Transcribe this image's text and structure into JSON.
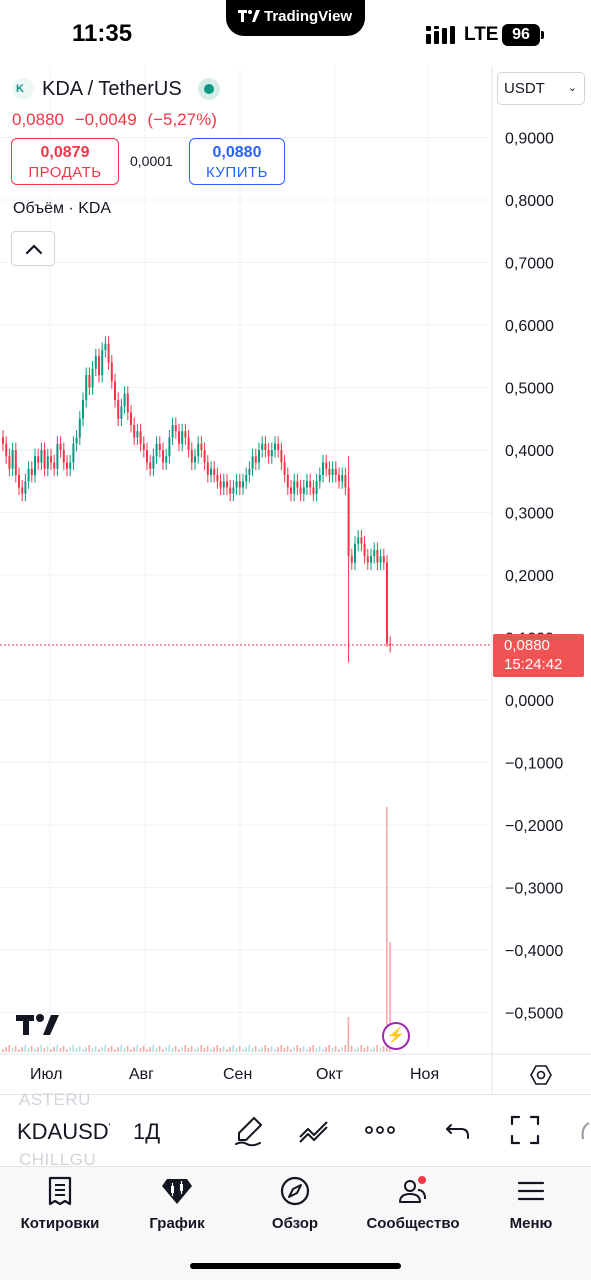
{
  "status_bar": {
    "time": "11:35",
    "island_app": "TradingView",
    "network": "LTE",
    "battery": "96"
  },
  "header": {
    "symbol": "KDA / TetherUS",
    "last_price": "0,0880",
    "change": "−0,0049",
    "change_pct": "(−5,27%)",
    "sell_price": "0,0879",
    "sell_label": "ПРОДАТЬ",
    "spread": "0,0001",
    "buy_price": "0,0880",
    "buy_label": "КУПИТЬ",
    "volume_label": "Объём · KDA",
    "currency": "USDT"
  },
  "chart": {
    "y_ticks": [
      "0,9000",
      "0,8000",
      "0,7000",
      "0,6000",
      "0,5000",
      "0,4000",
      "0,3000",
      "0,2000",
      "0,0000",
      "−0,1000",
      "−0,2000",
      "−0,3000",
      "−0,4000",
      "−0,5000"
    ],
    "x_ticks": [
      "Июл",
      "Авг",
      "Сен",
      "Окт",
      "Ноя"
    ],
    "current_price": "0,0880",
    "countdown": "15:24:42",
    "up_color": "#089981",
    "down_color": "#f23645"
  },
  "chart_data": {
    "type": "candlestick",
    "title": "KDA / TetherUS",
    "xlabel": "",
    "ylabel": "",
    "ylim": [
      -0.55,
      0.97
    ],
    "grid": true,
    "x_ticks": [
      "Июл",
      "Авг",
      "Сен",
      "Окт",
      "Ноя"
    ],
    "close": [
      0.41,
      0.39,
      0.37,
      0.4,
      0.36,
      0.34,
      0.33,
      0.35,
      0.37,
      0.36,
      0.39,
      0.38,
      0.4,
      0.37,
      0.39,
      0.38,
      0.37,
      0.41,
      0.4,
      0.38,
      0.37,
      0.38,
      0.41,
      0.42,
      0.45,
      0.48,
      0.52,
      0.5,
      0.53,
      0.55,
      0.52,
      0.56,
      0.57,
      0.54,
      0.51,
      0.48,
      0.45,
      0.47,
      0.49,
      0.46,
      0.44,
      0.42,
      0.43,
      0.41,
      0.4,
      0.38,
      0.37,
      0.39,
      0.41,
      0.4,
      0.38,
      0.39,
      0.42,
      0.44,
      0.43,
      0.41,
      0.43,
      0.42,
      0.4,
      0.38,
      0.39,
      0.41,
      0.4,
      0.38,
      0.36,
      0.37,
      0.36,
      0.35,
      0.34,
      0.35,
      0.34,
      0.33,
      0.34,
      0.35,
      0.34,
      0.35,
      0.36,
      0.37,
      0.39,
      0.38,
      0.4,
      0.41,
      0.4,
      0.39,
      0.4,
      0.41,
      0.4,
      0.38,
      0.36,
      0.34,
      0.33,
      0.35,
      0.34,
      0.33,
      0.34,
      0.35,
      0.34,
      0.33,
      0.35,
      0.36,
      0.38,
      0.37,
      0.36,
      0.37,
      0.36,
      0.35,
      0.36,
      0.34,
      0.23,
      0.22,
      0.25,
      0.26,
      0.25,
      0.23,
      0.22,
      0.23,
      0.24,
      0.22,
      0.23,
      0.22,
      0.09,
      0.088
    ],
    "current_price": 0.088,
    "volume_spike_index": 120
  },
  "toolbar": {
    "ghost_prev": "ASTERU",
    "symbol": "KDAUSDT",
    "ghost_next": "CHILLGU",
    "interval": "1Д"
  },
  "nav": {
    "items": [
      {
        "label": "Котировки",
        "icon": "watchlist-icon"
      },
      {
        "label": "График",
        "icon": "chart-icon"
      },
      {
        "label": "Обзор",
        "icon": "compass-icon"
      },
      {
        "label": "Сообщество",
        "icon": "community-icon"
      },
      {
        "label": "Меню",
        "icon": "menu-icon"
      }
    ]
  }
}
